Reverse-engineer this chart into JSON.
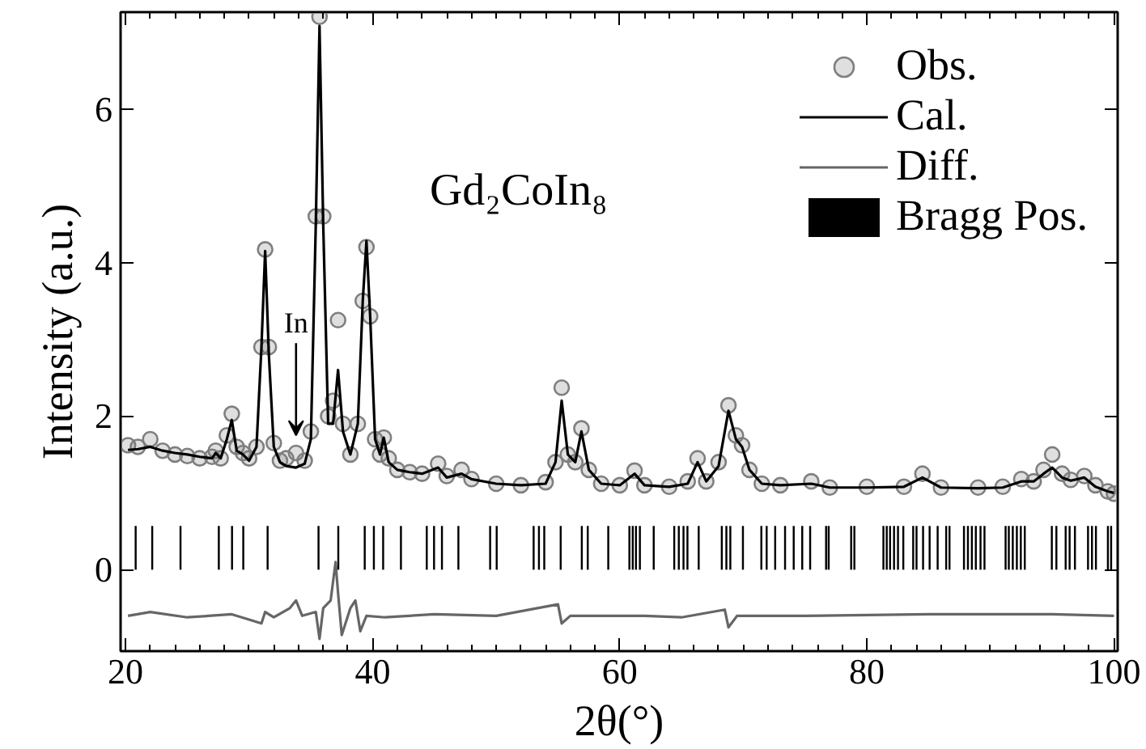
{
  "chart_data": {
    "type": "line",
    "xlabel": "2θ(°)",
    "ylabel": "Intensity (a.u.)",
    "xlim": [
      19.6,
      100.3
    ],
    "ylim": [
      -1.06,
      7.26
    ],
    "xticks": [
      20,
      40,
      60,
      80,
      100
    ],
    "yticks": [
      0,
      2,
      4,
      6
    ],
    "grid": false,
    "legend": "top right",
    "annotations": [
      "Gd₂CoIn₈",
      {
        "text": "In",
        "x": 33.8,
        "y": 1.75
      }
    ],
    "x": [
      20.2,
      21,
      22,
      23,
      24,
      25,
      26,
      27,
      27.3,
      27.7,
      28.2,
      28.6,
      29.0,
      29.5,
      30.0,
      30.6,
      31.0,
      31.3,
      31.6,
      32.0,
      32.5,
      33.0,
      33.8,
      34.5,
      35.0,
      35.4,
      35.7,
      36.0,
      36.4,
      36.8,
      37.2,
      37.6,
      38.2,
      38.8,
      39.2,
      39.5,
      39.8,
      40.2,
      40.6,
      40.9,
      41.3,
      42,
      43,
      44,
      45.3,
      46,
      47.2,
      48,
      50,
      52,
      54,
      54.8,
      55.3,
      55.8,
      56.4,
      56.9,
      57.5,
      58.5,
      60,
      61.2,
      62,
      64,
      65.5,
      66.3,
      67,
      68,
      68.8,
      69.4,
      69.9,
      70.5,
      71.5,
      73,
      75.5,
      77,
      80,
      83,
      84.5,
      86,
      89,
      91,
      92.5,
      93.5,
      94.3,
      95,
      95.8,
      96.5,
      97.6,
      98.5,
      99.5,
      100
    ],
    "series": [
      {
        "name": "Obs.",
        "type": "scatter",
        "marker": "circle",
        "color": "#7f7f7f",
        "values": [
          1.62,
          1.6,
          1.7,
          1.55,
          1.5,
          1.48,
          1.45,
          1.47,
          1.55,
          1.45,
          1.75,
          2.03,
          1.6,
          1.52,
          1.45,
          1.6,
          2.9,
          4.17,
          2.9,
          1.65,
          1.42,
          1.45,
          1.52,
          1.42,
          1.8,
          4.6,
          7.2,
          4.6,
          2.0,
          2.2,
          3.25,
          1.9,
          1.5,
          1.9,
          3.5,
          4.2,
          3.3,
          1.7,
          1.5,
          1.72,
          1.45,
          1.3,
          1.27,
          1.25,
          1.38,
          1.22,
          1.3,
          1.18,
          1.12,
          1.1,
          1.14,
          1.4,
          2.37,
          1.5,
          1.4,
          1.84,
          1.3,
          1.12,
          1.1,
          1.29,
          1.1,
          1.08,
          1.15,
          1.45,
          1.15,
          1.4,
          2.14,
          1.75,
          1.62,
          1.3,
          1.12,
          1.1,
          1.15,
          1.07,
          1.08,
          1.08,
          1.25,
          1.07,
          1.07,
          1.08,
          1.18,
          1.15,
          1.3,
          1.5,
          1.25,
          1.17,
          1.22,
          1.1,
          1.02,
          0.99
        ]
      },
      {
        "name": "Cal.",
        "color": "#000000",
        "values": [
          1.56,
          1.57,
          1.6,
          1.55,
          1.52,
          1.5,
          1.47,
          1.45,
          1.52,
          1.45,
          1.7,
          1.95,
          1.55,
          1.5,
          1.42,
          1.6,
          2.9,
          4.15,
          2.8,
          1.6,
          1.4,
          1.35,
          1.33,
          1.38,
          1.7,
          4.5,
          7.08,
          4.5,
          1.9,
          1.9,
          2.6,
          1.8,
          1.5,
          1.9,
          3.5,
          4.28,
          3.3,
          1.7,
          1.5,
          1.72,
          1.4,
          1.3,
          1.27,
          1.25,
          1.33,
          1.2,
          1.25,
          1.18,
          1.12,
          1.1,
          1.12,
          1.4,
          2.2,
          1.5,
          1.4,
          1.8,
          1.3,
          1.12,
          1.1,
          1.25,
          1.1,
          1.08,
          1.12,
          1.4,
          1.15,
          1.35,
          2.07,
          1.7,
          1.6,
          1.3,
          1.12,
          1.1,
          1.12,
          1.07,
          1.07,
          1.08,
          1.2,
          1.07,
          1.06,
          1.07,
          1.15,
          1.15,
          1.25,
          1.33,
          1.2,
          1.16,
          1.2,
          1.08,
          1.02,
          1.0
        ]
      },
      {
        "name": "Diff.",
        "type": "line",
        "color": "#666666",
        "x": [
          20.2,
          22,
          25,
          28.6,
          30,
          31,
          31.3,
          32,
          33.3,
          33.8,
          34.3,
          35.4,
          35.7,
          36,
          36.6,
          37.0,
          37.2,
          37.5,
          38.2,
          38.6,
          39,
          39.5,
          41,
          45,
          50,
          55,
          55.3,
          56,
          62,
          65,
          68.5,
          68.8,
          69.5,
          75,
          85,
          95,
          100
        ],
        "values": [
          -0.6,
          -0.55,
          -0.62,
          -0.58,
          -0.65,
          -0.7,
          -0.55,
          -0.62,
          -0.5,
          -0.4,
          -0.6,
          -0.55,
          -0.9,
          -0.5,
          -0.4,
          0.1,
          -0.3,
          -0.85,
          -0.5,
          -0.4,
          -0.8,
          -0.6,
          -0.62,
          -0.58,
          -0.6,
          -0.45,
          -0.7,
          -0.6,
          -0.6,
          -0.62,
          -0.52,
          -0.75,
          -0.6,
          -0.6,
          -0.58,
          -0.58,
          -0.6
        ]
      },
      {
        "name": "Bragg Pos.",
        "type": "bar",
        "color": "#000000",
        "x": [
          20.82,
          22.16,
          24.45,
          27.55,
          28.62,
          29.53,
          31.5,
          35.62,
          37.22,
          39.36,
          40.1,
          40.85,
          42.29,
          44.38,
          44.97,
          45.61,
          46.94,
          49.51,
          50.04,
          53.03,
          53.46,
          53.89,
          55.22,
          56.93,
          57.41,
          59.07,
          60.78,
          61.05,
          61.31,
          61.63,
          62.75,
          64.41,
          64.78,
          65.16,
          65.48,
          66.39,
          68.26,
          68.63,
          68.95,
          69.97,
          71.46,
          71.89,
          72.58,
          73.38,
          74.08,
          74.77,
          75.41,
          76.7,
          76.91,
          78.73,
          78.99,
          81.34,
          81.61,
          81.88,
          82.2,
          82.52,
          82.95,
          83.75,
          84.02,
          84.55,
          85.08,
          85.73,
          86.42,
          86.69,
          87.86,
          88.18,
          88.5,
          88.82,
          89.2,
          89.52,
          91.23,
          91.49,
          91.81,
          92.14,
          92.46,
          92.78,
          94.97,
          95.34,
          96.09,
          96.41,
          96.84,
          97.9,
          98.22,
          98.54,
          99.51,
          99.77
        ],
        "values": [
          0.57,
          0.57,
          0.57,
          0.57,
          0.57,
          0.57,
          0.57,
          0.57,
          0.57,
          0.57,
          0.57,
          0.57,
          0.57,
          0.57,
          0.57,
          0.57,
          0.57,
          0.57,
          0.57,
          0.57,
          0.57,
          0.57,
          0.57,
          0.57,
          0.57,
          0.57,
          0.57,
          0.57,
          0.57,
          0.57,
          0.57,
          0.57,
          0.57,
          0.57,
          0.57,
          0.57,
          0.57,
          0.57,
          0.57,
          0.57,
          0.57,
          0.57,
          0.57,
          0.57,
          0.57,
          0.57,
          0.57,
          0.57,
          0.57,
          0.57,
          0.57,
          0.57,
          0.57,
          0.57,
          0.57,
          0.57,
          0.57,
          0.57,
          0.57,
          0.57,
          0.57,
          0.57,
          0.57,
          0.57,
          0.57,
          0.57,
          0.57,
          0.57,
          0.57,
          0.57,
          0.57,
          0.57,
          0.57,
          0.57,
          0.57,
          0.57,
          0.57,
          0.57,
          0.57,
          0.57,
          0.57,
          0.57,
          0.57,
          0.57,
          0.57,
          0.57
        ]
      }
    ]
  }
}
